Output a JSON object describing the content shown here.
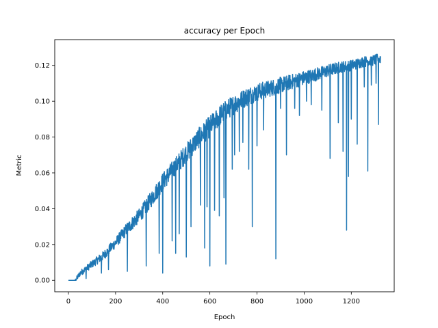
{
  "chart_data": {
    "type": "line",
    "title": "accuracy per Epoch",
    "xlabel": "Epoch",
    "ylabel": "Metric",
    "xlim": [
      -58,
      1382
    ],
    "ylim": [
      -0.0064,
      0.1344
    ],
    "xticks": [
      0,
      200,
      400,
      600,
      800,
      1000,
      1200
    ],
    "xtick_labels": [
      "0",
      "200",
      "400",
      "600",
      "800",
      "1000",
      "1200"
    ],
    "yticks": [
      0.0,
      0.02,
      0.04,
      0.06,
      0.08,
      0.1,
      0.12
    ],
    "ytick_labels": [
      "0.00",
      "0.02",
      "0.04",
      "0.06",
      "0.08",
      "0.10",
      "0.12"
    ],
    "grid": false,
    "series": [
      {
        "name": "accuracy",
        "color": "#1f77b4",
        "epoch_count": 1325,
        "trend_points": [
          [
            0,
            0.0
          ],
          [
            30,
            0.0
          ],
          [
            50,
            0.004
          ],
          [
            100,
            0.009
          ],
          [
            150,
            0.014
          ],
          [
            200,
            0.021
          ],
          [
            250,
            0.029
          ],
          [
            300,
            0.036
          ],
          [
            350,
            0.045
          ],
          [
            400,
            0.055
          ],
          [
            450,
            0.063
          ],
          [
            500,
            0.071
          ],
          [
            550,
            0.079
          ],
          [
            600,
            0.086
          ],
          [
            650,
            0.093
          ],
          [
            700,
            0.098
          ],
          [
            750,
            0.102
          ],
          [
            800,
            0.105
          ],
          [
            850,
            0.107
          ],
          [
            900,
            0.109
          ],
          [
            950,
            0.111
          ],
          [
            1000,
            0.113
          ],
          [
            1050,
            0.115
          ],
          [
            1100,
            0.117
          ],
          [
            1150,
            0.119
          ],
          [
            1200,
            0.12
          ],
          [
            1250,
            0.122
          ],
          [
            1300,
            0.123
          ],
          [
            1325,
            0.124
          ]
        ],
        "noise_amplitude": [
          [
            0,
            0.0
          ],
          [
            40,
            0.0015
          ],
          [
            200,
            0.003
          ],
          [
            400,
            0.005
          ],
          [
            600,
            0.006
          ],
          [
            800,
            0.005
          ],
          [
            1000,
            0.004
          ],
          [
            1200,
            0.003
          ],
          [
            1325,
            0.003
          ]
        ],
        "dips": [
          [
            75,
            0.001
          ],
          [
            140,
            0.004
          ],
          [
            170,
            0.006
          ],
          [
            250,
            0.005
          ],
          [
            330,
            0.008
          ],
          [
            385,
            0.015
          ],
          [
            400,
            0.004
          ],
          [
            440,
            0.022
          ],
          [
            455,
            0.015
          ],
          [
            470,
            0.026
          ],
          [
            500,
            0.013
          ],
          [
            520,
            0.03
          ],
          [
            560,
            0.042
          ],
          [
            578,
            0.018
          ],
          [
            588,
            0.041
          ],
          [
            600,
            0.008
          ],
          [
            620,
            0.039
          ],
          [
            640,
            0.036
          ],
          [
            660,
            0.046
          ],
          [
            668,
            0.009
          ],
          [
            695,
            0.062
          ],
          [
            705,
            0.07
          ],
          [
            725,
            0.072
          ],
          [
            740,
            0.077
          ],
          [
            765,
            0.062
          ],
          [
            780,
            0.03
          ],
          [
            800,
            0.075
          ],
          [
            828,
            0.084
          ],
          [
            880,
            0.012
          ],
          [
            900,
            0.096
          ],
          [
            925,
            0.07
          ],
          [
            960,
            0.096
          ],
          [
            980,
            0.092
          ],
          [
            1010,
            0.1
          ],
          [
            1030,
            0.098
          ],
          [
            1075,
            0.095
          ],
          [
            1110,
            0.068
          ],
          [
            1145,
            0.088
          ],
          [
            1165,
            0.072
          ],
          [
            1180,
            0.028
          ],
          [
            1188,
            0.058
          ],
          [
            1200,
            0.09
          ],
          [
            1225,
            0.076
          ],
          [
            1255,
            0.108
          ],
          [
            1270,
            0.061
          ],
          [
            1285,
            0.109
          ],
          [
            1305,
            0.11
          ],
          [
            1315,
            0.087
          ]
        ]
      }
    ]
  }
}
